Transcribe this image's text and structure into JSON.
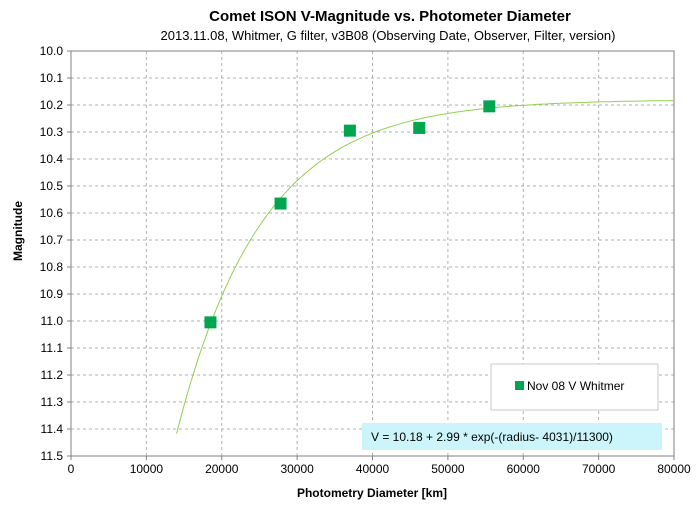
{
  "chart_data": {
    "type": "scatter",
    "title": "Comet ISON V-Magnitude  vs. Photometer Diameter",
    "subtitle": "2013.11.08,  Whitmer, G filter, v3B08 (Observing Date, Observer, Filter, version)",
    "xlabel": "Photometry Diameter  [km]",
    "ylabel": "Magnitude",
    "xlim": [
      0,
      80000
    ],
    "ylim": [
      10.0,
      11.5
    ],
    "y_inverted": true,
    "grid": true,
    "x_ticks": [
      0,
      10000,
      20000,
      30000,
      40000,
      50000,
      60000,
      70000,
      80000
    ],
    "x_tick_labels": [
      "0",
      "10000",
      "20000",
      "30000",
      "40000",
      "50000",
      "60000",
      "70000",
      "80000"
    ],
    "y_ticks": [
      10.0,
      10.1,
      10.2,
      10.3,
      10.4,
      10.5,
      10.6,
      10.7,
      10.8,
      10.9,
      11.0,
      11.1,
      11.2,
      11.3,
      11.4,
      11.5
    ],
    "y_tick_labels": [
      "10.0",
      "10.1",
      "10.2",
      "10.3",
      "10.4",
      "10.5",
      "10.6",
      "10.7",
      "10.8",
      "10.9",
      "11.0",
      "11.1",
      "11.2",
      "11.3",
      "11.4",
      "11.5"
    ],
    "series": [
      {
        "name": "Nov 08 V Whitmer",
        "marker": "square",
        "color": "#00a550",
        "x": [
          18500,
          27800,
          37000,
          46200,
          55500
        ],
        "y": [
          11.005,
          10.565,
          10.295,
          10.285,
          10.205
        ]
      }
    ],
    "fit": {
      "label": "V = 10.18 + 2.99 * exp(-(radius- 4031)/11300)",
      "color": "#92d050",
      "x_start": 14000,
      "x_end": 80000
    },
    "legend_position": "bottom-right",
    "fit_label_bg": "#ccf5fb"
  }
}
